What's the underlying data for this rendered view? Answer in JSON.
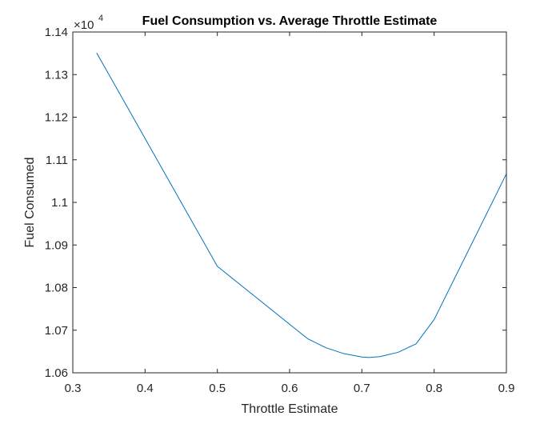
{
  "chart_data": {
    "type": "line",
    "title": "Fuel Consumption vs. Average Throttle Estimate",
    "xlabel": "Throttle Estimate",
    "ylabel": "Fuel Consumed",
    "exponent_multiplier": "×10",
    "exponent_power": "4",
    "xlim": [
      0.3,
      0.9
    ],
    "ylim": [
      1.06,
      1.14
    ],
    "xticks": [
      0.3,
      0.4,
      0.5,
      0.6,
      0.7,
      0.8,
      0.9
    ],
    "xtick_labels": [
      "0.3",
      "0.4",
      "0.5",
      "0.6",
      "0.7",
      "0.8",
      "0.9"
    ],
    "yticks": [
      1.06,
      1.07,
      1.08,
      1.09,
      1.1,
      1.11,
      1.12,
      1.13,
      1.14
    ],
    "ytick_labels": [
      "1.06",
      "1.07",
      "1.08",
      "1.09",
      "1.1",
      "1.11",
      "1.12",
      "1.13",
      "1.14"
    ],
    "grid": false,
    "box": true,
    "series": [
      {
        "color": "#0072BD",
        "x": [
          0.333,
          0.5,
          0.625,
          0.65,
          0.675,
          0.7,
          0.71,
          0.725,
          0.75,
          0.775,
          0.8,
          0.9
        ],
        "y": [
          1.1351,
          1.085,
          1.068,
          1.0659,
          1.0645,
          1.0637,
          1.0636,
          1.0638,
          1.0648,
          1.0668,
          1.0725,
          1.1067
        ]
      }
    ]
  }
}
